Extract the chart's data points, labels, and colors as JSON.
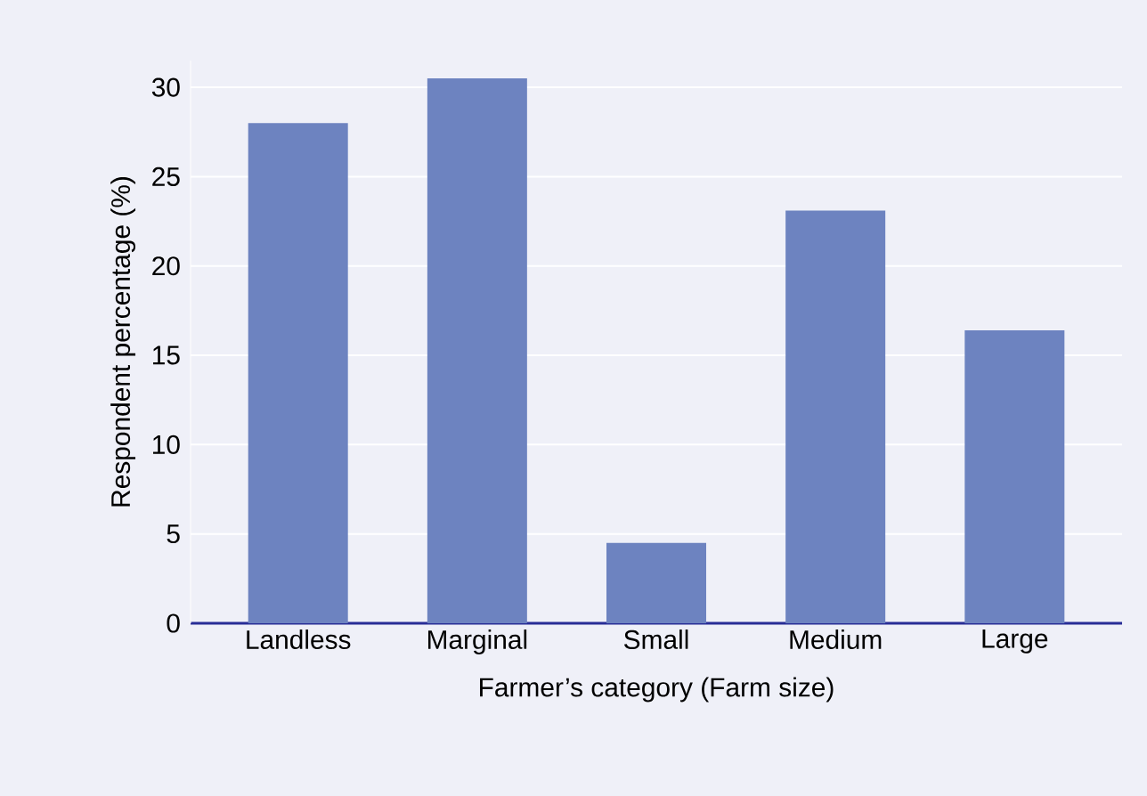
{
  "chart_data": {
    "type": "bar",
    "xlabel": "Farmer’s category (Farm size)",
    "ylabel": "Respondent percentage (%)",
    "categories": [
      "Landless",
      "Marginal",
      "Small",
      "Medium",
      "Large"
    ],
    "values": [
      28,
      30.5,
      4.5,
      23.1,
      16.4
    ],
    "color": "#6d83c0",
    "ylim": [
      0,
      31.5
    ],
    "yticks": [
      0,
      5,
      10,
      15,
      20,
      25,
      30
    ],
    "grid": "y"
  }
}
